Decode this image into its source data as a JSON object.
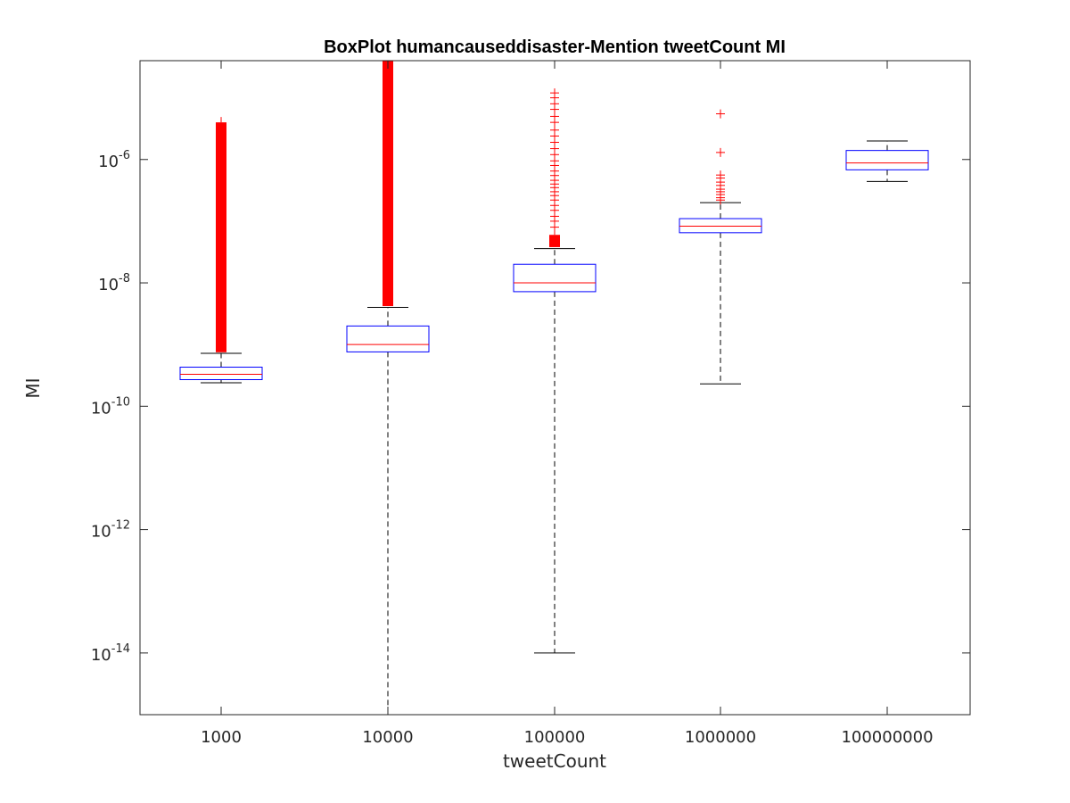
{
  "chart_data": {
    "type": "box",
    "title": "BoxPlot humancauseddisaster-Mention tweetCount MI",
    "xlabel": "tweetCount",
    "ylabel": "MI",
    "yscale": "log",
    "ylim": [
      1e-15,
      4e-05
    ],
    "yticks": [
      {
        "value": 1e-14,
        "base": "10",
        "exp": "-14"
      },
      {
        "value": 1e-12,
        "base": "10",
        "exp": "-12"
      },
      {
        "value": 1e-10,
        "base": "10",
        "exp": "-10"
      },
      {
        "value": 1e-08,
        "base": "10",
        "exp": "-8"
      },
      {
        "value": 1e-06,
        "base": "10",
        "exp": "-6"
      }
    ],
    "categories": [
      "1000",
      "10000",
      "100000",
      "1000000",
      "100000000"
    ],
    "boxes": [
      {
        "category": "1000",
        "whisker_low": 2.4e-10,
        "q1": 2.7e-10,
        "median": 3.3e-10,
        "q3": 4.3e-10,
        "whisker_high": 7.2e-10,
        "outliers_dense_range": [
          7.5e-10,
          4e-06
        ]
      },
      {
        "category": "10000",
        "whisker_low": 1e-15,
        "q1": 7.6e-10,
        "median": 1e-09,
        "q3": 2e-09,
        "whisker_high": 4e-09,
        "outliers_dense_range": [
          4.2e-09,
          4e-05
        ]
      },
      {
        "category": "100000",
        "whisker_low": 1e-14,
        "q1": 7.2e-09,
        "median": 1e-08,
        "q3": 2e-08,
        "whisker_high": 3.6e-08,
        "outliers_dense_range": [
          3.8e-08,
          6e-08
        ],
        "outliers": [
          8e-08,
          1e-07,
          1.2e-07,
          1.5e-07,
          1.8e-07,
          2.2e-07,
          2.6e-07,
          3e-07,
          3.5e-07,
          4e-07,
          4.6e-07,
          5.5e-07,
          6.5e-07,
          8e-07,
          9.5e-07,
          1.2e-06,
          1.5e-06,
          1.9e-06,
          2.4e-06,
          3e-06,
          4e-06,
          5e-06,
          6.5e-06,
          8e-06,
          1e-05,
          1.2e-05
        ]
      },
      {
        "category": "1000000",
        "whisker_low": 2.3e-10,
        "q1": 6.5e-08,
        "median": 8.3e-08,
        "q3": 1.1e-07,
        "whisker_high": 2e-07,
        "outliers": [
          2.2e-07,
          2.4e-07,
          2.7e-07,
          3e-07,
          3.3e-07,
          3.8e-07,
          4.3e-07,
          5e-07,
          5.6e-07,
          1.3e-06,
          5.5e-06
        ]
      },
      {
        "category": "100000000",
        "whisker_low": 4.4e-07,
        "q1": 6.8e-07,
        "median": 8.8e-07,
        "q3": 1.4e-06,
        "whisker_high": 2e-06,
        "outliers": []
      }
    ],
    "colors": {
      "box": "#0000ff",
      "median": "#ff0000",
      "whisker": "#000000",
      "outlier": "#ff0000",
      "axis": "#262626"
    },
    "grid": false,
    "legend": "none"
  }
}
